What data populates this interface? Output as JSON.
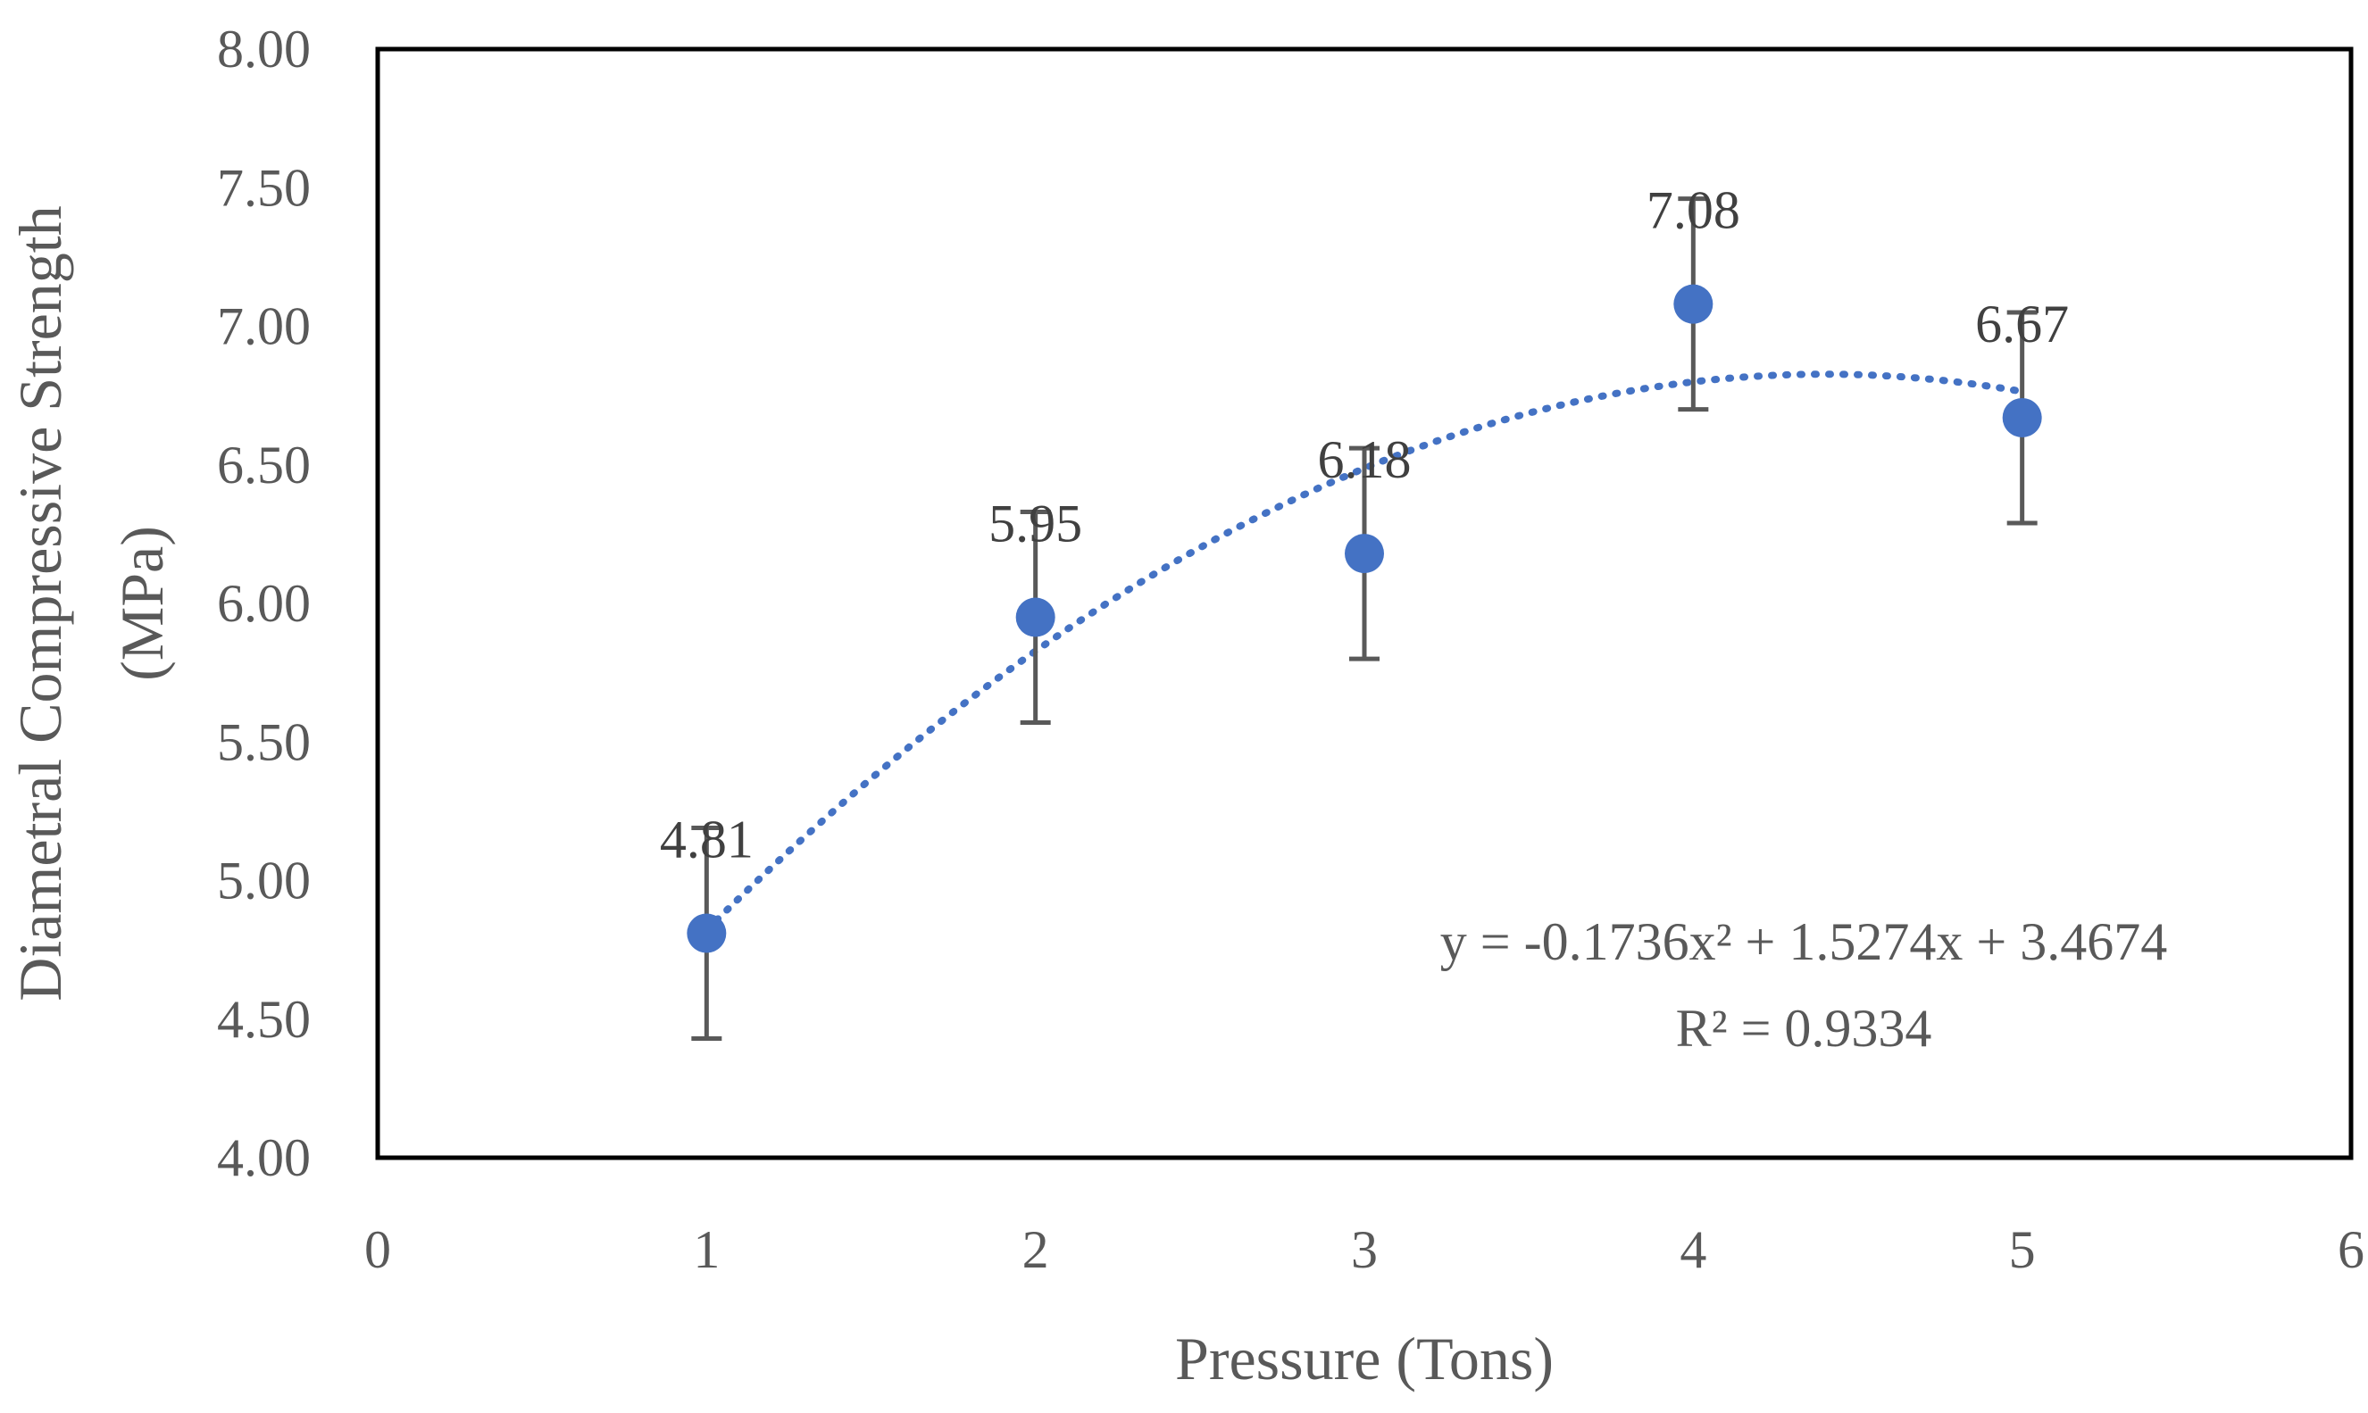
{
  "chart_data": {
    "type": "scatter",
    "title": "",
    "xlabel": "Pressure (Tons)",
    "ylabel_lines": [
      "Diametral Compressive Strength",
      "(MPa)"
    ],
    "xlim": [
      0,
      6
    ],
    "ylim": [
      4.0,
      8.0
    ],
    "x_ticks": [
      "0",
      "1",
      "2",
      "3",
      "4",
      "5",
      "6"
    ],
    "y_ticks": [
      "4.00",
      "4.50",
      "5.00",
      "5.50",
      "6.00",
      "6.50",
      "7.00",
      "7.50",
      "8.00"
    ],
    "grid": false,
    "legend": "none",
    "series": [
      {
        "name": "Diametral Compressive Strength",
        "color": "#4472C4",
        "points": [
          {
            "x": 1,
            "y": 4.81,
            "err": 0.38,
            "label": "4.81"
          },
          {
            "x": 2,
            "y": 5.95,
            "err": 0.38,
            "label": "5.95"
          },
          {
            "x": 3,
            "y": 6.18,
            "err": 0.38,
            "label": "6.18"
          },
          {
            "x": 4,
            "y": 7.08,
            "err": 0.38,
            "label": "7.08"
          },
          {
            "x": 5,
            "y": 6.67,
            "err": 0.38,
            "label": "6.67"
          }
        ]
      }
    ],
    "trendline": {
      "type": "polynomial",
      "order": 2,
      "coefficients": {
        "a": -0.1736,
        "b": 1.5274,
        "c": 3.4674
      },
      "x_range": [
        1,
        5
      ],
      "color": "#4472C4",
      "equation_text": "y = -0.1736x² + 1.5274x + 3.4674",
      "r2_text": "R² = 0.9334"
    },
    "colors": {
      "axis": "#000000",
      "error_bar": "#595959",
      "text": "#595959"
    }
  }
}
